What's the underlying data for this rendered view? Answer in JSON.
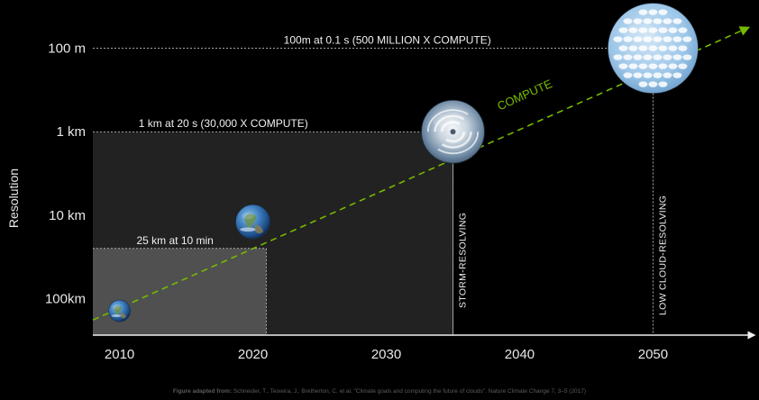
{
  "chart_data": {
    "type": "line",
    "title": "",
    "ylabel": "Resolution",
    "xlabel": "",
    "x_ticks": [
      2010,
      2020,
      2030,
      2040,
      2050
    ],
    "xlim": [
      2008,
      2057
    ],
    "y_ticks": [
      {
        "label": "100km",
        "km": 100
      },
      {
        "label": "10 km",
        "km": 10
      },
      {
        "label": "1 km",
        "km": 1
      },
      {
        "label": "100 m",
        "km": 0.1
      }
    ],
    "y_scale": "log",
    "ylim_km": [
      260,
      0.053
    ],
    "trend": {
      "name": "COMPUTE",
      "color": "#76b900",
      "x": [
        2008,
        2057
      ],
      "y_km": [
        180,
        0.058
      ]
    },
    "milestones": [
      {
        "name": "globe-2010",
        "x": 2010,
        "y_km": 140,
        "style": "earth"
      },
      {
        "name": "globe-2020",
        "x": 2020,
        "y_km": 12,
        "style": "earth"
      },
      {
        "name": "globe-2035",
        "x": 2035,
        "y_km": 1,
        "style": "hurricane"
      },
      {
        "name": "globe-2050",
        "x": 2050,
        "y_km": 0.1,
        "style": "clouds"
      }
    ],
    "regions": [
      {
        "label": "25 km at 10 min",
        "x_end": 2021,
        "y_km": 25,
        "fill": "#505050"
      },
      {
        "label": "1 km at 20 s (30,000 X COMPUTE)",
        "x_end": 2035,
        "y_km": 1,
        "fill": "#222222"
      }
    ],
    "annotations": [
      {
        "label": "100m at 0.1 s (500 MILLION X COMPUTE)",
        "y_km": 0.1
      }
    ],
    "vertical_markers": [
      {
        "label": "STORM-RESOLVING",
        "x": 2035
      },
      {
        "label": "LOW CLOUD-RESOLVING",
        "x": 2050
      }
    ]
  },
  "footnote": {
    "bold": "Figure adapted from:",
    "text": " Schneider, T., Teixeira, J., Bretherton, C. et al. \"Climate goals and computing the future of clouds\". Nature Climate Change 7, 3–5 (2017)"
  },
  "colors": {
    "background": "#000000",
    "axis": "#f0f0f0",
    "grid_dotted": "#bbbbbb",
    "trend": "#76b900"
  }
}
